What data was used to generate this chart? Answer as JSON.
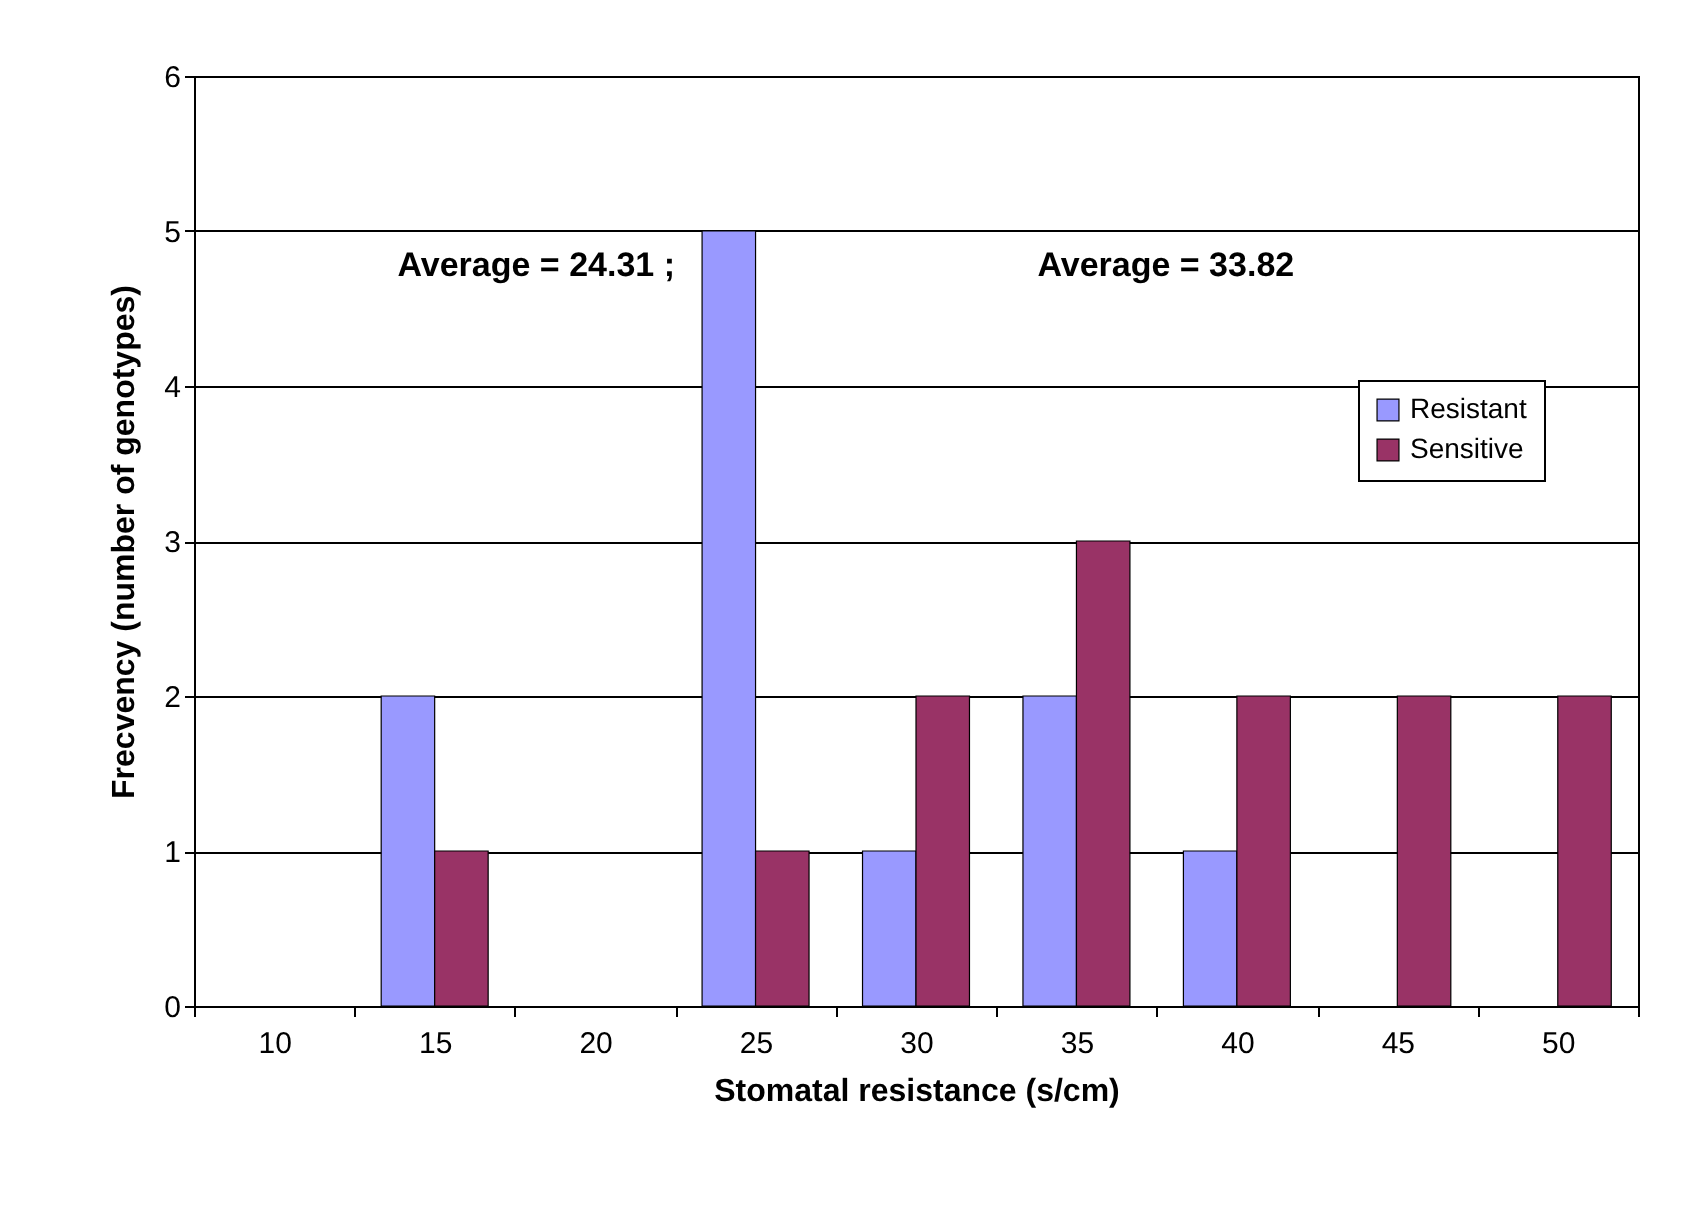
{
  "chart_data": {
    "type": "bar",
    "xlabel": "Stomatal resistance (s/cm)",
    "ylabel": "Frecvency (number of genotypes)",
    "categories": [
      "10",
      "15",
      "20",
      "25",
      "30",
      "35",
      "40",
      "45",
      "50"
    ],
    "series": [
      {
        "name": "Resistant",
        "color": "#9999ff",
        "values": [
          0,
          2,
          0,
          5,
          1,
          2,
          1,
          0,
          0
        ]
      },
      {
        "name": "Sensitive",
        "color": "#993366",
        "values": [
          0,
          1,
          0,
          1,
          2,
          3,
          2,
          2,
          2
        ]
      }
    ],
    "ylim": [
      0,
      6
    ],
    "yticks": [
      0,
      1,
      2,
      3,
      4,
      5,
      6
    ],
    "grid": "y",
    "legend": "right",
    "annotations": [
      "Average = 24.31 ;",
      "Average = 33.82"
    ]
  }
}
